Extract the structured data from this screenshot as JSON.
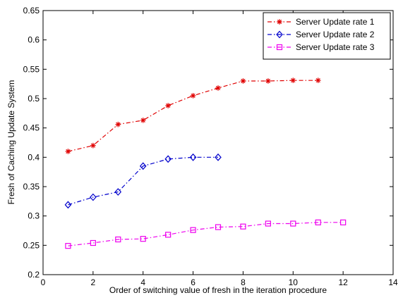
{
  "chart_data": {
    "type": "line",
    "title": "",
    "xlabel": "Order of switching value of fresh in the iteration procedure",
    "ylabel": "Fresh of Caching Update System",
    "xlim": [
      0,
      14
    ],
    "ylim": [
      0.2,
      0.65
    ],
    "xticks": [
      0,
      2,
      4,
      6,
      8,
      10,
      12,
      14
    ],
    "yticks": [
      0.2,
      0.25,
      0.3,
      0.35,
      0.4,
      0.45,
      0.5,
      0.55,
      0.6,
      0.65
    ],
    "xtick_labels": [
      "0",
      "2",
      "4",
      "6",
      "8",
      "10",
      "12",
      "14"
    ],
    "ytick_labels": [
      "0.2",
      "0.25",
      "0.3",
      "0.35",
      "0.4",
      "0.45",
      "0.5",
      "0.55",
      "0.6",
      "0.65"
    ],
    "grid": false,
    "legend_position": "top-right",
    "series": [
      {
        "name": "Server Update rate 1",
        "color": "#e00000",
        "marker": "asterisk",
        "x": [
          1,
          2,
          3,
          4,
          5,
          6,
          7,
          8,
          9,
          10,
          11
        ],
        "y": [
          0.41,
          0.42,
          0.456,
          0.463,
          0.488,
          0.505,
          0.518,
          0.53,
          0.53,
          0.531,
          0.531
        ]
      },
      {
        "name": "Server Update rate 2",
        "color": "#0000cc",
        "marker": "diamond",
        "x": [
          1,
          2,
          3,
          4,
          5,
          6,
          7
        ],
        "y": [
          0.319,
          0.332,
          0.341,
          0.385,
          0.397,
          0.4,
          0.4
        ]
      },
      {
        "name": "Server Update rate 3",
        "color": "#ee00ee",
        "marker": "square",
        "x": [
          1,
          2,
          3,
          4,
          5,
          6,
          7,
          8,
          9,
          10,
          11,
          12
        ],
        "y": [
          0.249,
          0.254,
          0.26,
          0.261,
          0.268,
          0.276,
          0.281,
          0.282,
          0.287,
          0.287,
          0.289,
          0.289
        ]
      }
    ]
  }
}
